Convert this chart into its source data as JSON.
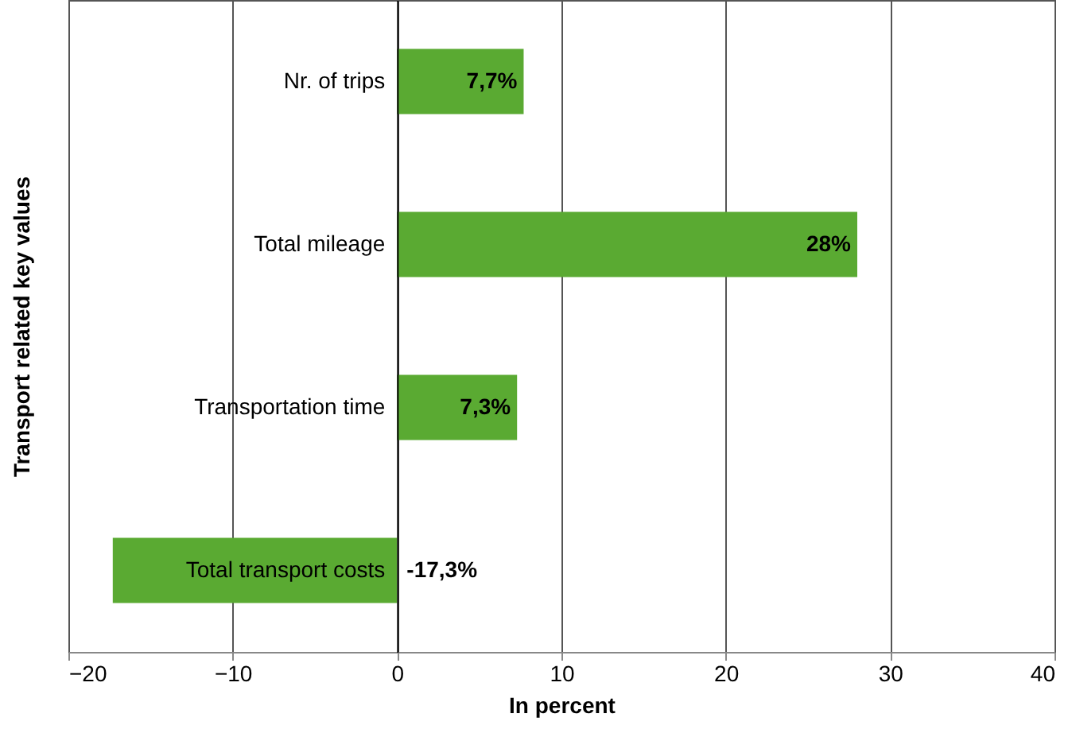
{
  "chart_data": {
    "type": "bar",
    "orientation": "horizontal",
    "categories": [
      "Nr. of trips",
      "Total mileage",
      "Transportation time",
      "Total transport costs"
    ],
    "values": [
      7.7,
      28,
      7.3,
      -17.3
    ],
    "value_labels": [
      "7,7%",
      "28%",
      "7,3%",
      "-17,3%"
    ],
    "color": "#5aaa32",
    "xlim": [
      -20,
      40
    ],
    "xticks": [
      -20,
      -10,
      0,
      10,
      20,
      30,
      40
    ],
    "xlabel": "In percent",
    "ylabel": "Transport related key values",
    "grid": "x"
  }
}
